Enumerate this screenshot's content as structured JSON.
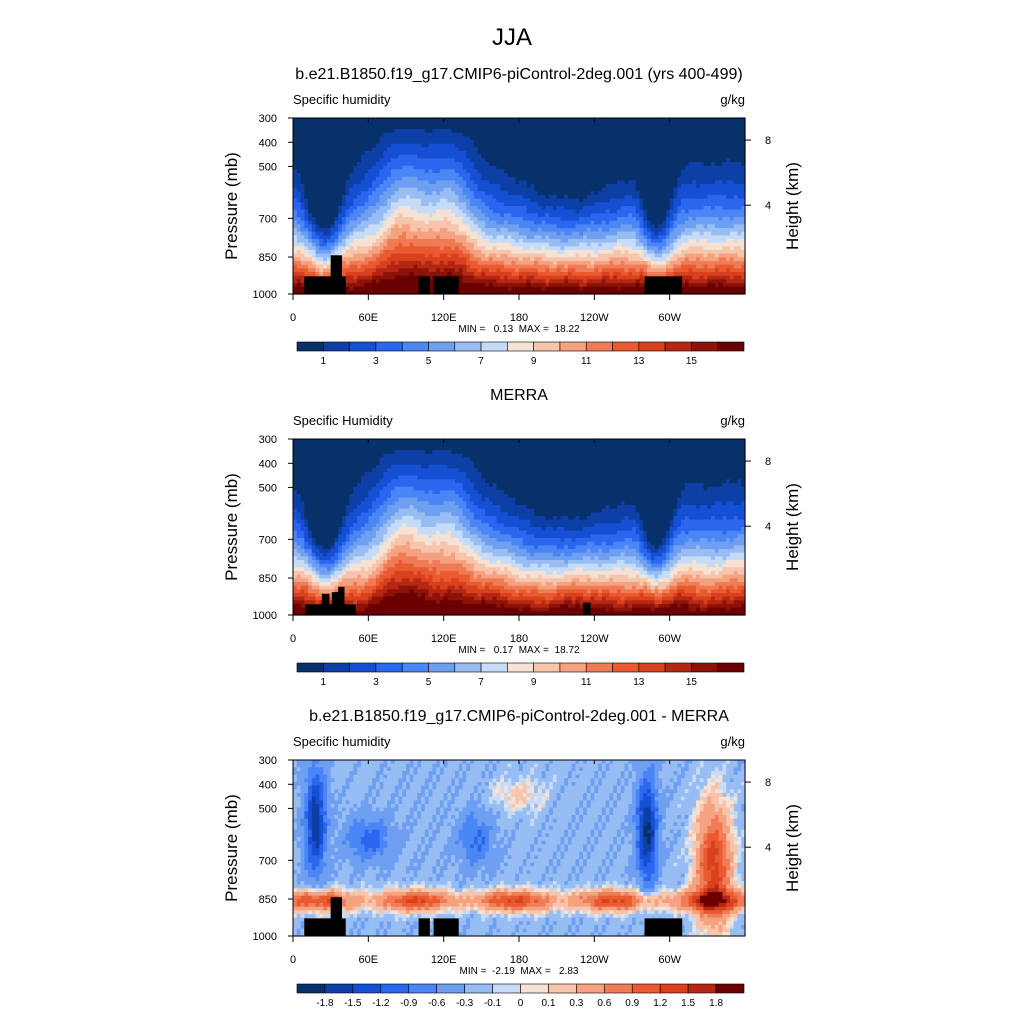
{
  "figure": {
    "title": "JJA"
  },
  "chart_data": [
    {
      "type": "heatmap",
      "title": "b.e21.B1850.f19_g17.CMIP6-piControl-2deg.001 (yrs 400-499)",
      "variable": "Specific humidity",
      "units": "g/kg",
      "ylabel": "Pressure (mb)",
      "y2label": "Height (km)",
      "yticks": [
        "300",
        "400",
        "500",
        "700",
        "850",
        "1000"
      ],
      "y2ticks": [
        "8",
        "4"
      ],
      "xticks": [
        "0",
        "60E",
        "120E",
        "180",
        "120W",
        "60W"
      ],
      "stats": "MIN =   0.13  MAX =  18.22",
      "min": 0.13,
      "max": 18.22,
      "colorbar_labels": [
        "1",
        "3",
        "5",
        "7",
        "9",
        "11",
        "13",
        "15"
      ],
      "levels": [
        1,
        2,
        3,
        4,
        5,
        6,
        7,
        8,
        9,
        10,
        11,
        12,
        13,
        14,
        15,
        16
      ],
      "colors": [
        "#08306b",
        "#0d3fa6",
        "#1550d4",
        "#2a66ee",
        "#4a86f5",
        "#6f9ff0",
        "#97bdf3",
        "#c5dbf7",
        "#f5e2d4",
        "#f7c4ac",
        "#f4a27f",
        "#ef7c57",
        "#ea5a31",
        "#d8401e",
        "#b52712",
        "#8d1208",
        "#6b0000"
      ]
    },
    {
      "type": "heatmap",
      "title": "MERRA",
      "variable": "Specific Humidity",
      "units": "g/kg",
      "ylabel": "Pressure (mb)",
      "y2label": "Height (km)",
      "yticks": [
        "300",
        "400",
        "500",
        "700",
        "850",
        "1000"
      ],
      "y2ticks": [
        "8",
        "4"
      ],
      "xticks": [
        "0",
        "60E",
        "120E",
        "180",
        "120W",
        "60W"
      ],
      "stats": "MIN =   0.17  MAX =  18.72",
      "min": 0.17,
      "max": 18.72,
      "colorbar_labels": [
        "1",
        "3",
        "5",
        "7",
        "9",
        "11",
        "13",
        "15"
      ],
      "levels": [
        1,
        2,
        3,
        4,
        5,
        6,
        7,
        8,
        9,
        10,
        11,
        12,
        13,
        14,
        15,
        16
      ],
      "colors": [
        "#08306b",
        "#0d3fa6",
        "#1550d4",
        "#2a66ee",
        "#4a86f5",
        "#6f9ff0",
        "#97bdf3",
        "#c5dbf7",
        "#f5e2d4",
        "#f7c4ac",
        "#f4a27f",
        "#ef7c57",
        "#ea5a31",
        "#d8401e",
        "#b52712",
        "#8d1208",
        "#6b0000"
      ]
    },
    {
      "type": "heatmap",
      "title": "b.e21.B1850.f19_g17.CMIP6-piControl-2deg.001 - MERRA",
      "variable": "Specific humidity",
      "units": "g/kg",
      "ylabel": "Pressure (mb)",
      "y2label": "Height (km)",
      "yticks": [
        "300",
        "400",
        "500",
        "700",
        "850",
        "1000"
      ],
      "y2ticks": [
        "8",
        "4"
      ],
      "xticks": [
        "0",
        "60E",
        "120E",
        "180",
        "120W",
        "60W"
      ],
      "stats": "MIN =  -2.19  MAX =   2.83",
      "min": -2.19,
      "max": 2.83,
      "colorbar_labels": [
        "-1.8",
        "-1.5",
        "-1.2",
        "-0.9",
        "-0.6",
        "-0.3",
        "-0.1",
        "0",
        "0.1",
        "0.3",
        "0.6",
        "0.9",
        "1.2",
        "1.5",
        "1.8"
      ],
      "levels": [
        -1.8,
        -1.5,
        -1.2,
        -0.9,
        -0.6,
        -0.3,
        -0.1,
        0,
        0.1,
        0.3,
        0.6,
        0.9,
        1.2,
        1.5,
        1.8
      ],
      "colors": [
        "#08306b",
        "#0d3fa6",
        "#1550d4",
        "#2a66ee",
        "#4a86f5",
        "#6f9ff0",
        "#97bdf3",
        "#c5dbf7",
        "#f5e2d4",
        "#f7c4ac",
        "#f4a27f",
        "#ef7c57",
        "#ea5a31",
        "#d8401e",
        "#b52712",
        "#6b0000"
      ]
    }
  ]
}
